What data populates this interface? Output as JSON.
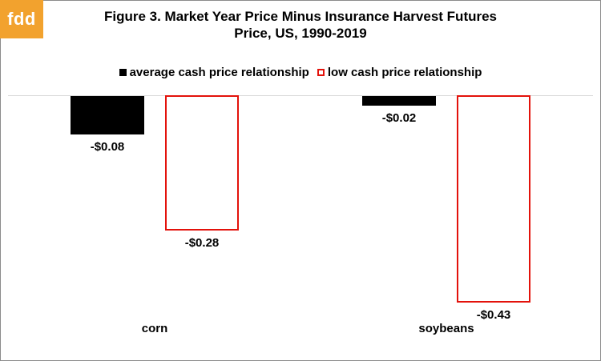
{
  "logo": {
    "text": "fdd",
    "color": "#f2a22e"
  },
  "chart_data": {
    "type": "bar",
    "title": "Figure 3. Market Year Price Minus Insurance Harvest Futures Price, US, 1990-2019",
    "title_lines": [
      "Figure 3. Market Year Price Minus Insurance Harvest Futures",
      "Price, US, 1990-2019"
    ],
    "categories": [
      "corn",
      "soybeans"
    ],
    "series": [
      {
        "name": "average cash price relationship",
        "values": [
          -0.08,
          -0.02
        ],
        "labels": [
          "-$0.08",
          "-$0.02"
        ],
        "fill": "#000000",
        "stroke": "#000000"
      },
      {
        "name": "low cash price relationship",
        "values": [
          -0.28,
          -0.43
        ],
        "labels": [
          "-$0.28",
          "-$0.43"
        ],
        "fill": "#ffffff",
        "stroke": "#e3120b"
      }
    ],
    "xlabel": "",
    "ylabel": "",
    "ylim": [
      -0.45,
      0
    ],
    "grid": false,
    "legend_position": "top-center",
    "data_labels_position": "below-bar"
  }
}
